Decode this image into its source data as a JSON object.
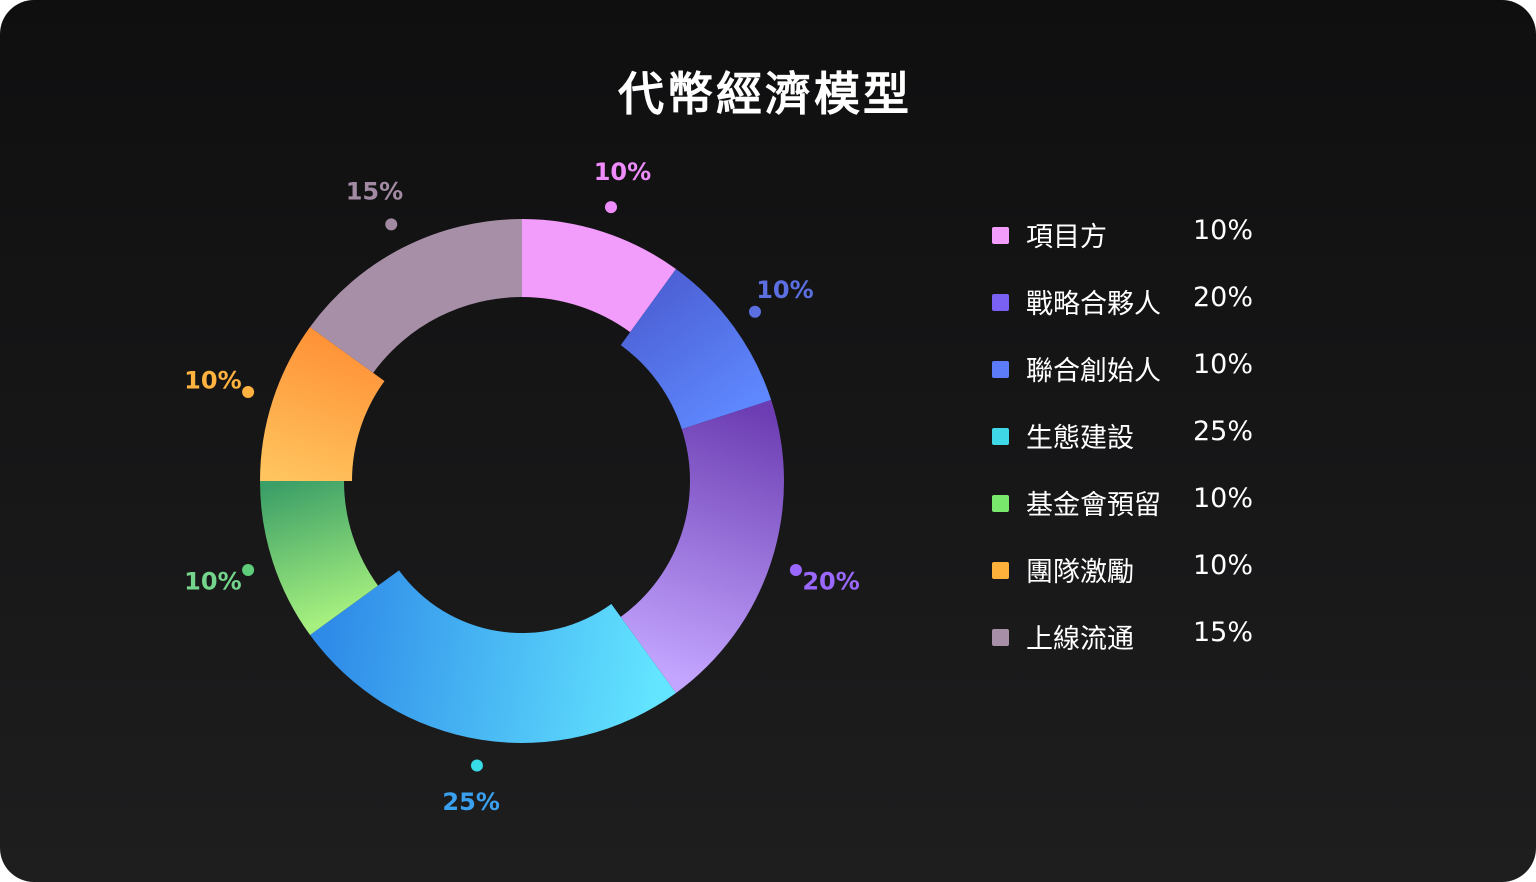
{
  "title": "代幣經濟模型",
  "chart_data": {
    "type": "donut",
    "title": "代幣經濟模型",
    "unit": "%",
    "slices": [
      {
        "name": "項目方",
        "value": 10,
        "label": "10%",
        "color": "#f29cfb",
        "color_end": "#f29cfb",
        "dot": "#ef8cfb"
      },
      {
        "name": "聯合創始人",
        "value": 10,
        "label": "10%",
        "color": "#4d62d6",
        "color_end": "#5f88ff",
        "dot": "#5b6fe0"
      },
      {
        "name": "戰略合夥人",
        "value": 20,
        "label": "20%",
        "color": "#6d3eb3",
        "color_end": "#c3a5ff",
        "dot": "#9a68ff"
      },
      {
        "name": "生態建設",
        "value": 25,
        "label": "25%",
        "color": "#63e5ff",
        "color_end": "#2f8be8",
        "dot": "#38dce8",
        "label_color": "#3aa0f0"
      },
      {
        "name": "基金會預留",
        "value": 10,
        "label": "10%",
        "color": "#a6f07f",
        "color_end": "#3c9f67",
        "dot": "#5fcc7a",
        "label_color": "#74d48c"
      },
      {
        "name": "團隊激勵",
        "value": 10,
        "label": "10%",
        "color": "#ffc45e",
        "color_end": "#ff9338",
        "dot": "#ffb23f"
      },
      {
        "name": "上線流通",
        "value": 15,
        "label": "15%",
        "color": "#a88fa8",
        "color_end": "#a88fa8",
        "dot": "#a28aa2"
      }
    ]
  },
  "legend": [
    {
      "label": "項目方",
      "value": "10%",
      "color": "#f29cfb"
    },
    {
      "label": "戰略合夥人",
      "value": "20%",
      "color": "#7a61f4"
    },
    {
      "label": "聯合創始人",
      "value": "10%",
      "color": "#5b7bf7"
    },
    {
      "label": "生態建設",
      "value": "25%",
      "color": "#3fd8e6"
    },
    {
      "label": "基金會預留",
      "value": "10%",
      "color": "#78e86d"
    },
    {
      "label": "團隊激勵",
      "value": "10%",
      "color": "#ffb13b"
    },
    {
      "label": "上線流通",
      "value": "15%",
      "color": "#a88fa8"
    }
  ]
}
